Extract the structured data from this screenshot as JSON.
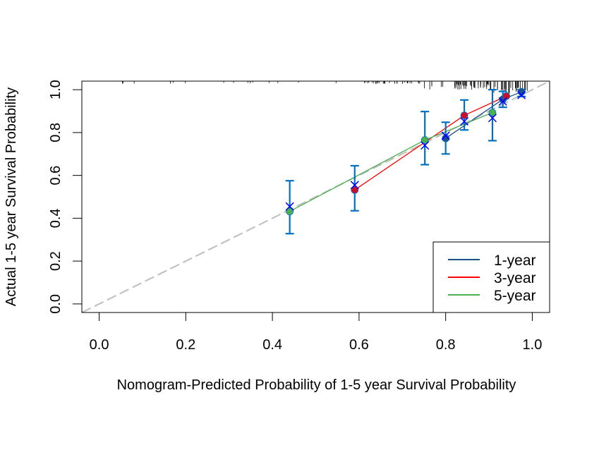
{
  "chart_data": {
    "type": "scatter",
    "title": "",
    "xlabel": "Nomogram-Predicted Probability of 1-5 year Survival Probability",
    "ylabel": "Actual 1-5 year Survival Probability",
    "xlim": [
      -0.04,
      1.04
    ],
    "ylim": [
      -0.04,
      1.04
    ],
    "xticks": [
      "0.0",
      "0.2",
      "0.4",
      "0.6",
      "0.8",
      "1.0"
    ],
    "yticks": [
      "0.0",
      "0.2",
      "0.4",
      "0.6",
      "0.8",
      "1.0"
    ],
    "grid": false,
    "legend_position": "bottom-right",
    "reference_line": {
      "from": [
        -0.04,
        -0.04
      ],
      "to": [
        1.04,
        1.04
      ],
      "color": "#BEBEBE",
      "style": "dashed"
    },
    "series": [
      {
        "name": "1-year",
        "color": "#1F4E8C",
        "points": [
          {
            "x": 0.8,
            "y": 0.773
          },
          {
            "x": 0.932,
            "y": 0.955
          },
          {
            "x": 0.975,
            "y": 0.99
          }
        ]
      },
      {
        "name": "3-year",
        "color": "#FF0000",
        "point_color": "#C8102E",
        "points": [
          {
            "x": 0.59,
            "y": 0.532
          },
          {
            "x": 0.843,
            "y": 0.88
          },
          {
            "x": 0.94,
            "y": 0.97
          }
        ]
      },
      {
        "name": "5-year",
        "color": "#4CB050",
        "points": [
          {
            "x": 0.44,
            "y": 0.432
          },
          {
            "x": 0.752,
            "y": 0.765
          },
          {
            "x": 0.908,
            "y": 0.893
          }
        ]
      }
    ],
    "error_bars": {
      "color": "#0070C0",
      "bars": [
        {
          "x": 0.44,
          "low": 0.328,
          "high": 0.575
        },
        {
          "x": 0.59,
          "low": 0.435,
          "high": 0.645
        },
        {
          "x": 0.752,
          "low": 0.65,
          "high": 0.898
        },
        {
          "x": 0.8,
          "low": 0.7,
          "high": 0.848
        },
        {
          "x": 0.843,
          "low": 0.812,
          "high": 0.952
        },
        {
          "x": 0.908,
          "low": 0.762,
          "high": 1.0
        },
        {
          "x": 0.932,
          "low": 0.918,
          "high": 0.992
        },
        {
          "x": 0.975,
          "low": 0.968,
          "high": 1.0
        }
      ]
    },
    "x_markers": {
      "color": "#0000FF",
      "points": [
        {
          "x": 0.44,
          "y": 0.455
        },
        {
          "x": 0.59,
          "y": 0.555
        },
        {
          "x": 0.752,
          "y": 0.74
        },
        {
          "x": 0.8,
          "y": 0.785
        },
        {
          "x": 0.843,
          "y": 0.852
        },
        {
          "x": 0.908,
          "y": 0.868
        },
        {
          "x": 0.932,
          "y": 0.945
        },
        {
          "x": 0.975,
          "y": 0.975
        }
      ]
    },
    "rug_color": "#000000"
  }
}
